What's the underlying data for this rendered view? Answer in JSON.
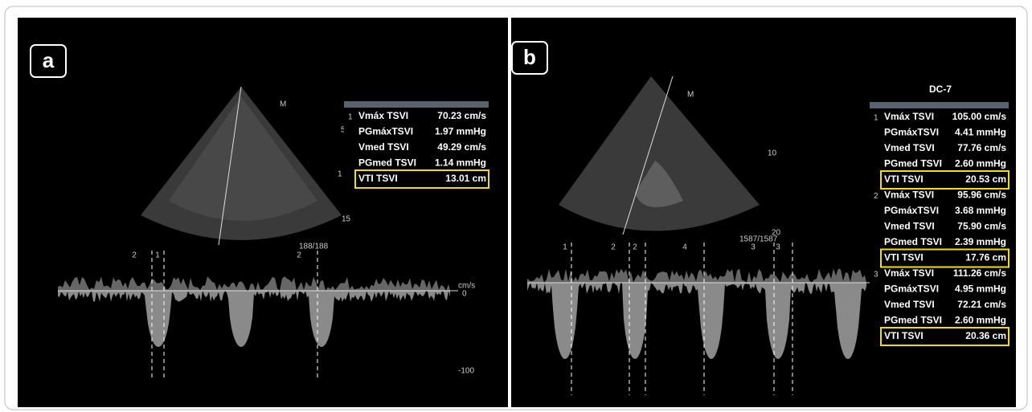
{
  "panels": [
    {
      "label": "a",
      "marker": "M",
      "depth_labels": [
        "5",
        "1",
        "15"
      ],
      "frame_counter": "188/188",
      "velocity_unit": "cm/s",
      "velocity_labels": [
        "0",
        "-100"
      ],
      "cursor_labels": [
        "2",
        "1",
        "2"
      ],
      "measurements": [
        {
          "index": "1",
          "rows": [
            [
              "Vmáx TSVI",
              "70.23 cm/s"
            ],
            [
              "PGmáxTSVI",
              "1.97 mmHg"
            ],
            [
              "Vmed TSVI",
              "49.29 cm/s"
            ],
            [
              "PGmed TSVI",
              "1.14 mmHg"
            ],
            [
              "VTI TSVI",
              "13.01 cm"
            ]
          ]
        }
      ]
    },
    {
      "label": "b",
      "probe": "DC-7",
      "marker": "M",
      "depth_labels": [
        "10",
        "20"
      ],
      "frame_counter": "1587/1587",
      "cursor_labels": [
        "1",
        "2",
        "2",
        "4",
        "3",
        "3"
      ],
      "measurements": [
        {
          "index": "1",
          "rows": [
            [
              "Vmáx TSVI",
              "105.00 cm/s"
            ],
            [
              "PGmáxTSVI",
              "4.41 mmHg"
            ],
            [
              "Vmed TSVI",
              "77.76 cm/s"
            ],
            [
              "PGmed TSVI",
              "2.60 mmHg"
            ],
            [
              "VTI TSVI",
              "20.53 cm"
            ]
          ]
        },
        {
          "index": "2",
          "rows": [
            [
              "Vmáx TSVI",
              "95.96 cm/s"
            ],
            [
              "PGmáxTSVI",
              "3.68 mmHg"
            ],
            [
              "Vmed TSVI",
              "75.90 cm/s"
            ],
            [
              "PGmed TSVI",
              "2.39 mmHg"
            ],
            [
              "VTI TSVI",
              "17.76 cm"
            ]
          ]
        },
        {
          "index": "3",
          "rows": [
            [
              "Vmáx TSVI",
              "111.26 cm/s"
            ],
            [
              "PGmáxTSVI",
              "4.95 mmHg"
            ],
            [
              "Vmed TSVI",
              "72.21 cm/s"
            ],
            [
              "PGmed TSVI",
              "2.60 mmHg"
            ],
            [
              "VTI TSVI",
              "20.36 cm"
            ]
          ]
        }
      ]
    }
  ]
}
